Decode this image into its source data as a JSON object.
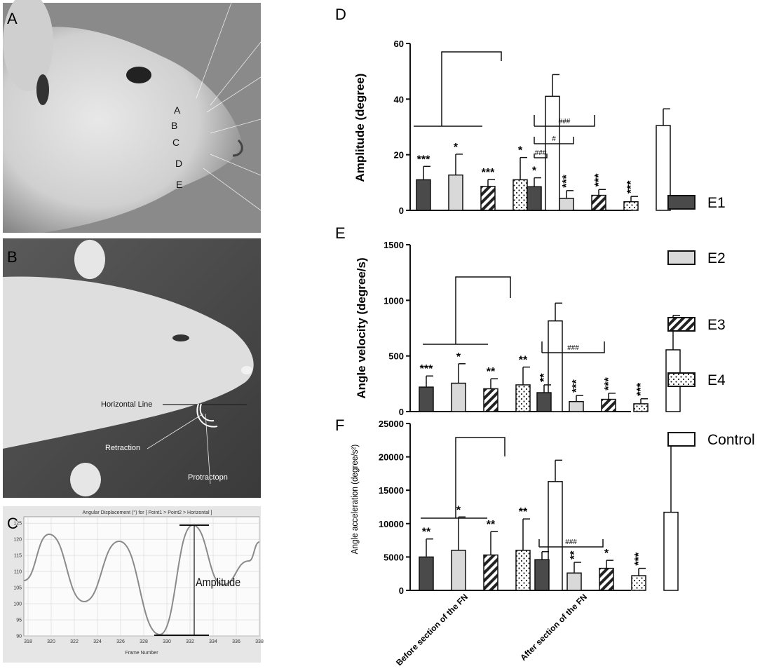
{
  "panel_labels": [
    "A",
    "B",
    "C",
    "D",
    "E",
    "F"
  ],
  "photo_a": {
    "row_labels": [
      "A",
      "B",
      "C",
      "D",
      "E"
    ]
  },
  "photo_b": {
    "labels": {
      "horizontal": "Horizontal Line",
      "retraction": "Retraction",
      "protraction": "Protractopn"
    }
  },
  "trace": {
    "title": "Angular Displacement (°) for [ Point1 > Point2 > Horizontal ]",
    "xlabel": "Frame Number",
    "x_ticks": [
      "318",
      "320",
      "322",
      "324",
      "326",
      "328",
      "330",
      "332",
      "334",
      "336",
      "338"
    ],
    "y_ticks": [
      "90",
      "95",
      "100",
      "105",
      "110",
      "115",
      "120",
      "125"
    ],
    "annotation": "Amplitude"
  },
  "legend": [
    {
      "label": "E1",
      "style": "dark"
    },
    {
      "label": "E2",
      "style": "light"
    },
    {
      "label": "E3",
      "style": "hatch"
    },
    {
      "label": "E4",
      "style": "dots"
    },
    {
      "label": "Control",
      "style": "white"
    }
  ],
  "groups": [
    "Before section of the FN",
    "After section of the FN"
  ],
  "colors": {
    "dark": "#4a4a4a",
    "light": "#d9d9d9",
    "white": "#ffffff",
    "axis": "#111111"
  },
  "chart_data": [
    {
      "type": "bar",
      "panel": "D",
      "ylabel": "Amplitude (degree)",
      "ylim": [
        0,
        60
      ],
      "y_ticks": [
        "0",
        "20",
        "40",
        "60"
      ],
      "series": [
        "E1",
        "E2",
        "E3",
        "E4",
        "Control"
      ],
      "values": [
        [
          11,
          12.7,
          8.6,
          11,
          41
        ],
        [
          8.5,
          4.3,
          5.4,
          3.1,
          30.5
        ]
      ],
      "errors": [
        [
          4.8,
          7.5,
          2.5,
          8,
          7.8
        ],
        [
          3.2,
          2.8,
          2.1,
          1.9,
          6
        ]
      ],
      "marks": [
        [
          "***",
          "*",
          "***",
          "*",
          ""
        ],
        [
          "*",
          "***",
          "***",
          "***",
          ""
        ]
      ],
      "hash_labels": [
        "###",
        "#",
        "###"
      ]
    },
    {
      "type": "bar",
      "panel": "E",
      "ylabel": "Angle velocity (degree/s)",
      "ylim": [
        0,
        1500
      ],
      "y_ticks": [
        "0",
        "500",
        "1000",
        "1500"
      ],
      "series": [
        "E1",
        "E2",
        "E3",
        "E4",
        "Control"
      ],
      "values": [
        [
          220,
          255,
          205,
          240,
          815
        ],
        [
          170,
          90,
          110,
          70,
          555
        ]
      ],
      "errors": [
        [
          100,
          175,
          90,
          160,
          160
        ],
        [
          70,
          55,
          55,
          45,
          310
        ]
      ],
      "marks": [
        [
          "***",
          "*",
          "**",
          "**",
          ""
        ],
        [
          "**",
          "***",
          "***",
          "***",
          ""
        ]
      ],
      "hash_labels": [
        "###"
      ]
    },
    {
      "type": "bar",
      "panel": "F",
      "ylabel": "Angle acceleration (degree/s²)",
      "ylim": [
        0,
        25000
      ],
      "y_ticks": [
        "0",
        "5000",
        "10000",
        "15000",
        "20000",
        "25000"
      ],
      "series": [
        "E1",
        "E2",
        "E3",
        "E4",
        "Control"
      ],
      "values": [
        [
          5000,
          6000,
          5300,
          6000,
          16300
        ],
        [
          4600,
          2600,
          3300,
          2200,
          11700
        ]
      ],
      "errors": [
        [
          2700,
          5000,
          3500,
          4700,
          3200
        ],
        [
          1200,
          1600,
          1200,
          1100,
          11200
        ]
      ],
      "marks": [
        [
          "**",
          "*",
          "**",
          "**",
          ""
        ],
        [
          "",
          "**",
          "*",
          "***",
          ""
        ]
      ],
      "hash_labels": [
        "###"
      ]
    }
  ]
}
